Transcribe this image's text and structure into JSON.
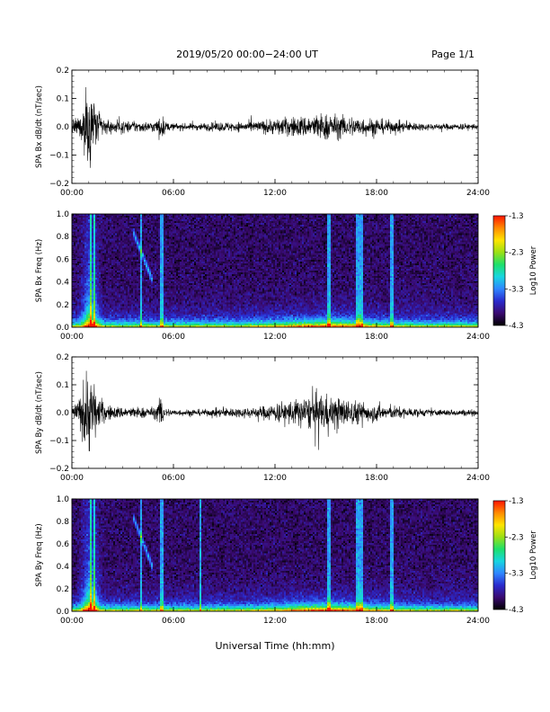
{
  "header": {
    "title": "2019/05/20  00:00−24:00 UT",
    "page": "Page 1/1"
  },
  "xaxis": {
    "label": "Universal Time (hh:mm)",
    "tick_labels": [
      "00:00",
      "06:00",
      "12:00",
      "18:00",
      "24:00"
    ],
    "range_hours": [
      0,
      24
    ]
  },
  "colorbar": {
    "label": "Log10 Power",
    "tick_labels": [
      "-1.3",
      "-2.3",
      "-3.3",
      "-4.3"
    ],
    "range": [
      -4.3,
      -1.3
    ],
    "colors": [
      "#000000",
      "#3a0a70",
      "#2a2acd",
      "#2f86ff",
      "#17d6e0",
      "#1ee06a",
      "#9be015",
      "#ffe400",
      "#ff8a00",
      "#ff1400"
    ]
  },
  "chart_data": [
    {
      "type": "line",
      "id": "bx-dbdt",
      "ylabel": "SPA Bx dB/dt (nT/sec)",
      "ylim": [
        -0.2,
        0.2
      ],
      "ytick_labels": [
        "0.2",
        "0.1",
        "0.0",
        "−0.1",
        "−0.2"
      ],
      "xlim": [
        0,
        24
      ],
      "amplitude_envelope": {
        "x_hours": [
          0,
          0.5,
          0.8,
          1.0,
          1.3,
          1.5,
          1.8,
          2.0,
          2.5,
          3.0,
          3.5,
          4.0,
          4.5,
          5.0,
          5.3,
          5.5,
          6.0,
          7.0,
          8.0,
          9.0,
          10.0,
          11.0,
          12.0,
          13.0,
          14.0,
          14.5,
          15.0,
          16.0,
          17.0,
          18.0,
          19.0,
          20.0,
          21.0,
          22.0,
          23.0,
          24.0
        ],
        "amp": [
          0.03,
          0.08,
          0.22,
          0.24,
          0.22,
          0.1,
          0.07,
          0.05,
          0.04,
          0.035,
          0.035,
          0.035,
          0.03,
          0.04,
          0.08,
          0.03,
          0.02,
          0.02,
          0.025,
          0.03,
          0.03,
          0.035,
          0.05,
          0.06,
          0.07,
          0.08,
          0.08,
          0.07,
          0.06,
          0.05,
          0.035,
          0.03,
          0.02,
          0.02,
          0.02,
          0.02
        ]
      }
    },
    {
      "type": "heatmap",
      "id": "bx-freq",
      "ylabel": "SPA Bx Freq (Hz)",
      "ylim": [
        0,
        1.0
      ],
      "ytick_labels": [
        "1.0",
        "0.8",
        "0.6",
        "0.4",
        "0.2",
        "0.0"
      ],
      "xlim": [
        0,
        24
      ],
      "zlim": [
        -4.3,
        -1.3
      ],
      "background_log_power": -4.0,
      "vertical_streaks_hours": [
        1.1,
        1.3,
        4.1,
        5.3,
        15.2,
        16.9,
        17.1,
        18.9
      ],
      "rising_feature": {
        "x_hours": [
          3.6,
          4.8
        ],
        "freq_hz": [
          0.85,
          0.4
        ]
      }
    },
    {
      "type": "line",
      "id": "by-dbdt",
      "ylabel": "SPA By dB/dt (nT/sec)",
      "ylim": [
        -0.2,
        0.2
      ],
      "ytick_labels": [
        "0.2",
        "0.1",
        "0.0",
        "−0.1",
        "−0.2"
      ],
      "xlim": [
        0,
        24
      ],
      "amplitude_envelope": {
        "x_hours": [
          0,
          0.5,
          0.8,
          1.0,
          1.3,
          1.5,
          1.8,
          2.0,
          2.5,
          3.0,
          3.5,
          4.0,
          4.5,
          5.0,
          5.3,
          5.5,
          6.0,
          7.0,
          8.0,
          9.0,
          10.0,
          11.0,
          12.0,
          13.0,
          14.0,
          14.5,
          15.0,
          16.0,
          17.0,
          18.0,
          19.0,
          20.0,
          21.0,
          22.0,
          23.0,
          24.0
        ],
        "amp": [
          0.03,
          0.1,
          0.25,
          0.26,
          0.22,
          0.1,
          0.08,
          0.05,
          0.04,
          0.035,
          0.035,
          0.035,
          0.03,
          0.04,
          0.12,
          0.03,
          0.02,
          0.02,
          0.02,
          0.03,
          0.03,
          0.035,
          0.06,
          0.08,
          0.1,
          0.12,
          0.11,
          0.09,
          0.07,
          0.05,
          0.04,
          0.03,
          0.02,
          0.02,
          0.02,
          0.02
        ]
      }
    },
    {
      "type": "heatmap",
      "id": "by-freq",
      "ylabel": "SPA By Freq (Hz)",
      "ylim": [
        0,
        1.0
      ],
      "ytick_labels": [
        "1.0",
        "0.8",
        "0.6",
        "0.4",
        "0.2",
        "0.0"
      ],
      "xlim": [
        0,
        24
      ],
      "zlim": [
        -4.3,
        -1.3
      ],
      "background_log_power": -4.0,
      "vertical_streaks_hours": [
        1.1,
        1.3,
        4.1,
        5.3,
        7.6,
        15.2,
        16.9,
        17.1,
        18.9
      ],
      "rising_feature": {
        "x_hours": [
          3.6,
          4.8
        ],
        "freq_hz": [
          0.85,
          0.38
        ]
      }
    }
  ]
}
